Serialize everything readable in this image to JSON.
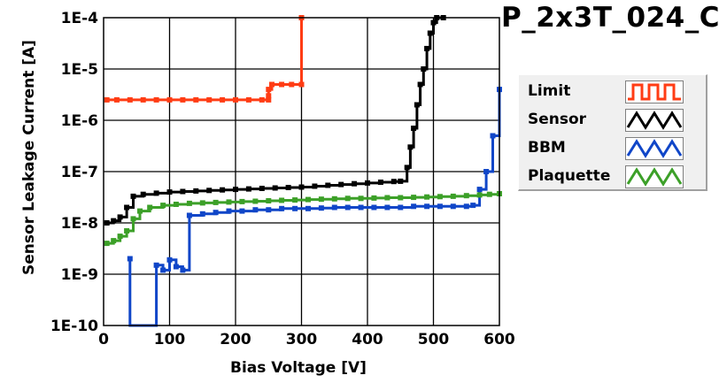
{
  "chart_data": {
    "type": "line",
    "title": "P_2x3T_024_C",
    "xlabel": "Bias Voltage [V]",
    "ylabel": "Sensor Leakage Current [A]",
    "xlim": [
      0,
      600
    ],
    "ylim": [
      1e-10,
      0.0001
    ],
    "yscale": "log",
    "grid": true,
    "legend_position": "right",
    "x_ticks": [
      {
        "value": 0,
        "label": "0"
      },
      {
        "value": 100,
        "label": "100"
      },
      {
        "value": 200,
        "label": "200"
      },
      {
        "value": 300,
        "label": "300"
      },
      {
        "value": 400,
        "label": "400"
      },
      {
        "value": 500,
        "label": "500"
      },
      {
        "value": 600,
        "label": "600"
      }
    ],
    "y_ticks": [
      {
        "value": 1e-10,
        "label": "1E-10"
      },
      {
        "value": 1e-09,
        "label": "1E-9"
      },
      {
        "value": 1e-08,
        "label": "1E-8"
      },
      {
        "value": 1e-07,
        "label": "1E-7"
      },
      {
        "value": 1e-06,
        "label": "1E-6"
      },
      {
        "value": 1e-05,
        "label": "1E-5"
      },
      {
        "value": 0.0001,
        "label": "1E-4"
      }
    ],
    "series": [
      {
        "name": "Limit",
        "color": "#ff3c14",
        "swatch": "square",
        "points": [
          [
            5,
            2.5e-06
          ],
          [
            20,
            2.5e-06
          ],
          [
            40,
            2.5e-06
          ],
          [
            60,
            2.5e-06
          ],
          [
            80,
            2.5e-06
          ],
          [
            100,
            2.5e-06
          ],
          [
            120,
            2.5e-06
          ],
          [
            140,
            2.5e-06
          ],
          [
            160,
            2.5e-06
          ],
          [
            180,
            2.5e-06
          ],
          [
            200,
            2.5e-06
          ],
          [
            220,
            2.5e-06
          ],
          [
            240,
            2.5e-06
          ],
          [
            250,
            2.5e-06
          ],
          [
            250,
            3e-06
          ],
          [
            250,
            4e-06
          ],
          [
            255,
            5e-06
          ],
          [
            270,
            5e-06
          ],
          [
            285,
            5e-06
          ],
          [
            300,
            5e-06
          ],
          [
            300,
            0.0001
          ]
        ]
      },
      {
        "name": "Sensor",
        "color": "#000000",
        "swatch": "triangle",
        "points": [
          [
            5,
            1e-08
          ],
          [
            15,
            1.1e-08
          ],
          [
            25,
            1.3e-08
          ],
          [
            35,
            2e-08
          ],
          [
            45,
            3.3e-08
          ],
          [
            60,
            3.6e-08
          ],
          [
            80,
            3.8e-08
          ],
          [
            100,
            4e-08
          ],
          [
            120,
            4.1e-08
          ],
          [
            140,
            4.2e-08
          ],
          [
            160,
            4.3e-08
          ],
          [
            180,
            4.4e-08
          ],
          [
            200,
            4.5e-08
          ],
          [
            220,
            4.6e-08
          ],
          [
            240,
            4.7e-08
          ],
          [
            260,
            4.8e-08
          ],
          [
            280,
            4.9e-08
          ],
          [
            300,
            5e-08
          ],
          [
            320,
            5.2e-08
          ],
          [
            340,
            5.4e-08
          ],
          [
            360,
            5.6e-08
          ],
          [
            380,
            5.8e-08
          ],
          [
            400,
            6e-08
          ],
          [
            420,
            6.2e-08
          ],
          [
            440,
            6.4e-08
          ],
          [
            450,
            6.5e-08
          ],
          [
            460,
            1.2e-07
          ],
          [
            465,
            3e-07
          ],
          [
            470,
            7e-07
          ],
          [
            475,
            2e-06
          ],
          [
            480,
            5e-06
          ],
          [
            485,
            1e-05
          ],
          [
            490,
            2.5e-05
          ],
          [
            495,
            5e-05
          ],
          [
            500,
            8e-05
          ],
          [
            505,
            0.0001
          ],
          [
            515,
            0.0001
          ]
        ]
      },
      {
        "name": "BBM",
        "color": "#1046c8",
        "swatch": "triangle",
        "points": [
          [
            40,
            2e-09
          ],
          [
            40,
            1e-10
          ],
          [
            80,
            1e-10
          ],
          [
            80,
            1.5e-09
          ],
          [
            90,
            1.2e-09
          ],
          [
            100,
            1.9e-09
          ],
          [
            110,
            1.4e-09
          ],
          [
            120,
            1.2e-09
          ],
          [
            130,
            1.4e-08
          ],
          [
            150,
            1.5e-08
          ],
          [
            170,
            1.6e-08
          ],
          [
            190,
            1.7e-08
          ],
          [
            210,
            1.7e-08
          ],
          [
            230,
            1.8e-08
          ],
          [
            250,
            1.8e-08
          ],
          [
            270,
            1.9e-08
          ],
          [
            290,
            1.9e-08
          ],
          [
            310,
            1.9e-08
          ],
          [
            330,
            1.95e-08
          ],
          [
            350,
            2e-08
          ],
          [
            370,
            2e-08
          ],
          [
            390,
            2e-08
          ],
          [
            410,
            2e-08
          ],
          [
            430,
            2e-08
          ],
          [
            450,
            2e-08
          ],
          [
            470,
            2.1e-08
          ],
          [
            490,
            2.1e-08
          ],
          [
            510,
            2.1e-08
          ],
          [
            530,
            2.1e-08
          ],
          [
            550,
            2.1e-08
          ],
          [
            560,
            2.2e-08
          ],
          [
            570,
            4.5e-08
          ],
          [
            580,
            1e-07
          ],
          [
            590,
            5e-07
          ],
          [
            600,
            4e-06
          ]
        ]
      },
      {
        "name": "Plaquette",
        "color": "#3ca028",
        "swatch": "triangle",
        "points": [
          [
            5,
            4e-09
          ],
          [
            15,
            4.5e-09
          ],
          [
            25,
            5.5e-09
          ],
          [
            35,
            7e-09
          ],
          [
            45,
            1.2e-08
          ],
          [
            55,
            1.7e-08
          ],
          [
            70,
            2e-08
          ],
          [
            90,
            2.2e-08
          ],
          [
            110,
            2.3e-08
          ],
          [
            130,
            2.4e-08
          ],
          [
            150,
            2.45e-08
          ],
          [
            170,
            2.5e-08
          ],
          [
            190,
            2.55e-08
          ],
          [
            210,
            2.6e-08
          ],
          [
            230,
            2.65e-08
          ],
          [
            250,
            2.7e-08
          ],
          [
            270,
            2.75e-08
          ],
          [
            290,
            2.8e-08
          ],
          [
            310,
            2.85e-08
          ],
          [
            330,
            2.9e-08
          ],
          [
            350,
            2.95e-08
          ],
          [
            370,
            3e-08
          ],
          [
            390,
            3e-08
          ],
          [
            410,
            3.05e-08
          ],
          [
            430,
            3.1e-08
          ],
          [
            450,
            3.1e-08
          ],
          [
            470,
            3.15e-08
          ],
          [
            490,
            3.2e-08
          ],
          [
            510,
            3.25e-08
          ],
          [
            530,
            3.3e-08
          ],
          [
            550,
            3.4e-08
          ],
          [
            570,
            3.5e-08
          ],
          [
            585,
            3.6e-08
          ],
          [
            600,
            3.7e-08
          ]
        ]
      }
    ]
  }
}
